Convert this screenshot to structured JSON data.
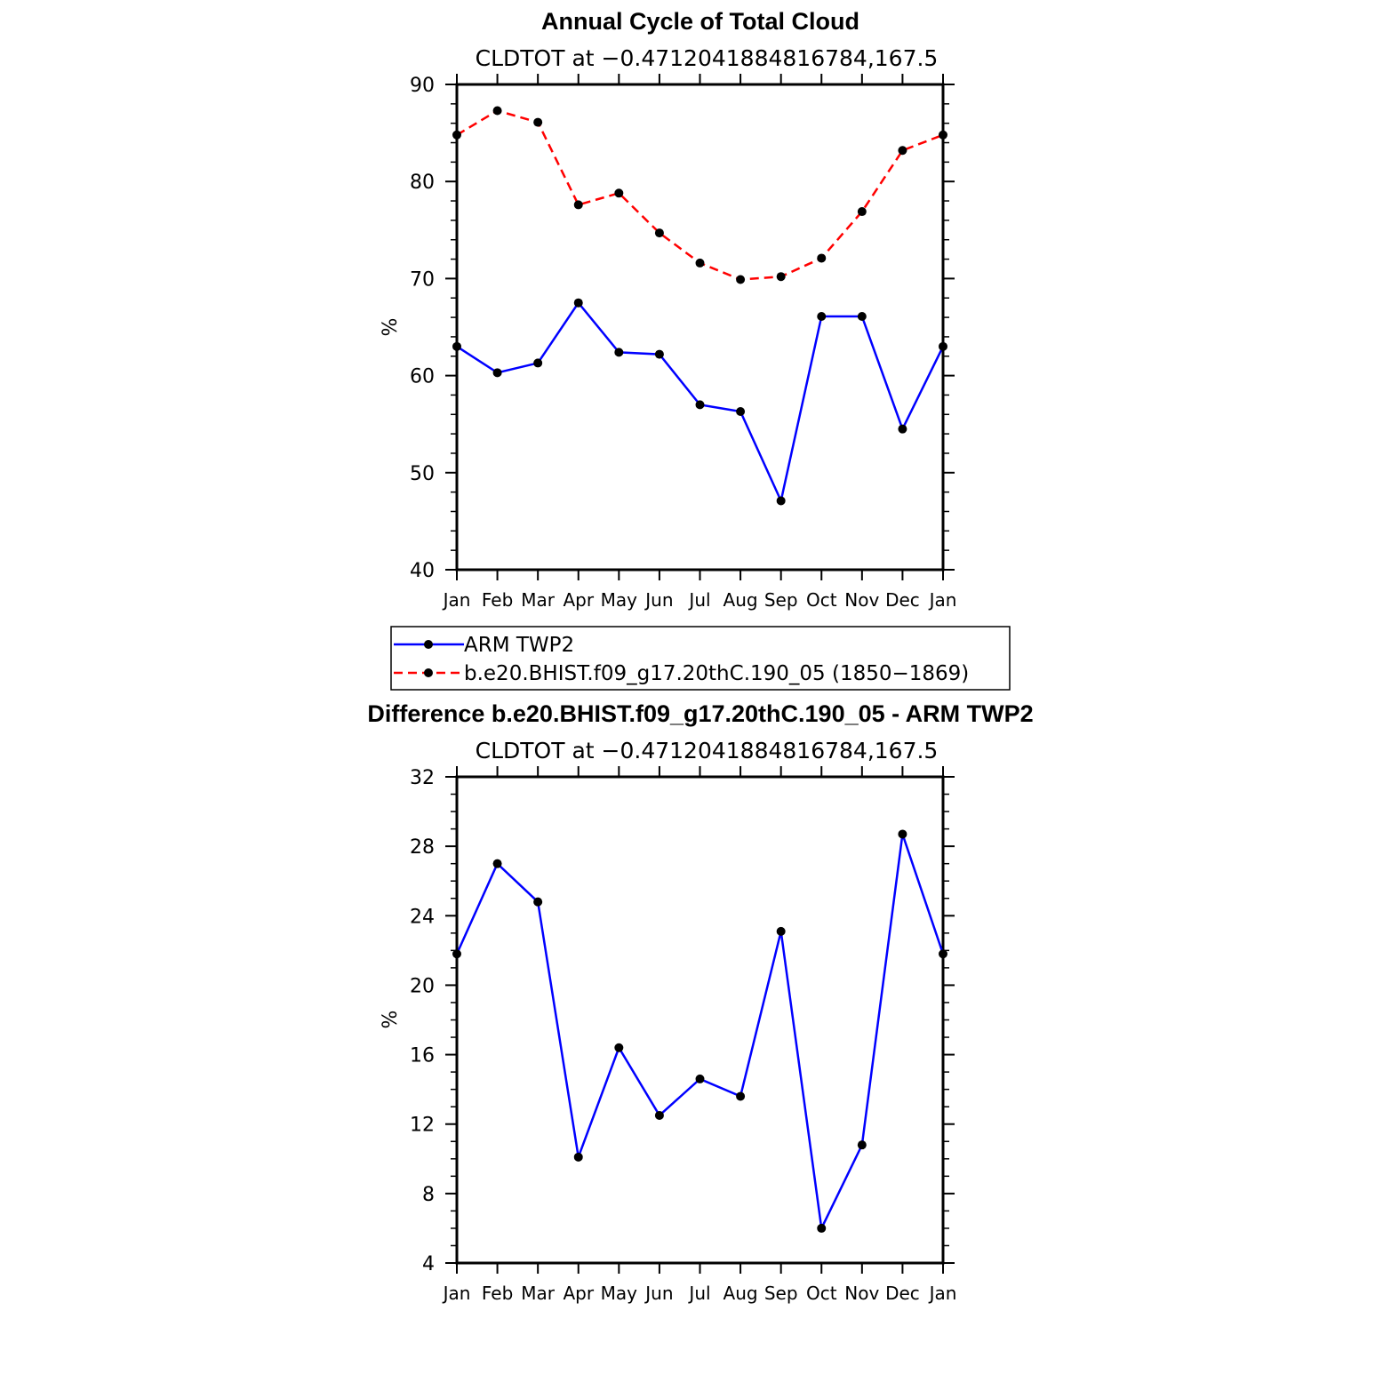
{
  "chart_data": [
    {
      "type": "line",
      "title": "Annual Cycle of Total Cloud",
      "subtitle": "CLDTOT at −0.4712041884816784,167.5",
      "xlabel": "",
      "ylabel": "%",
      "categories": [
        "Jan",
        "Feb",
        "Mar",
        "Apr",
        "May",
        "Jun",
        "Jul",
        "Aug",
        "Sep",
        "Oct",
        "Nov",
        "Dec",
        "Jan"
      ],
      "ylim": [
        40,
        90
      ],
      "yticks": [
        "40",
        "50",
        "60",
        "70",
        "80",
        "90"
      ],
      "series": [
        {
          "name": "ARM TWP2",
          "color": "#0000ff",
          "style": "solid",
          "values": [
            63.0,
            60.3,
            61.3,
            67.5,
            62.4,
            62.2,
            57.0,
            56.3,
            47.1,
            66.1,
            66.1,
            54.5,
            63.0
          ]
        },
        {
          "name": "b.e20.BHIST.f09_g17.20thC.190_05 (1850−1869)",
          "color": "#ff0000",
          "style": "dashed",
          "values": [
            84.8,
            87.3,
            86.1,
            77.6,
            78.8,
            74.7,
            71.6,
            69.9,
            70.2,
            72.1,
            76.9,
            83.2,
            84.8
          ]
        }
      ],
      "legend": "below"
    },
    {
      "type": "line",
      "title": "Difference b.e20.BHIST.f09_g17.20thC.190_05 - ARM TWP2",
      "subtitle": "CLDTOT at −0.4712041884816784,167.5",
      "xlabel": "",
      "ylabel": "%",
      "categories": [
        "Jan",
        "Feb",
        "Mar",
        "Apr",
        "May",
        "Jun",
        "Jul",
        "Aug",
        "Sep",
        "Oct",
        "Nov",
        "Dec",
        "Jan"
      ],
      "ylim": [
        4,
        32
      ],
      "yticks": [
        "4",
        "8",
        "12",
        "16",
        "20",
        "24",
        "28",
        "32"
      ],
      "series": [
        {
          "name": "Difference",
          "color": "#0000ff",
          "style": "solid",
          "values": [
            21.8,
            27.0,
            24.8,
            10.1,
            16.4,
            12.5,
            14.6,
            13.6,
            23.1,
            6.0,
            10.8,
            28.7,
            21.8
          ]
        }
      ]
    }
  ]
}
